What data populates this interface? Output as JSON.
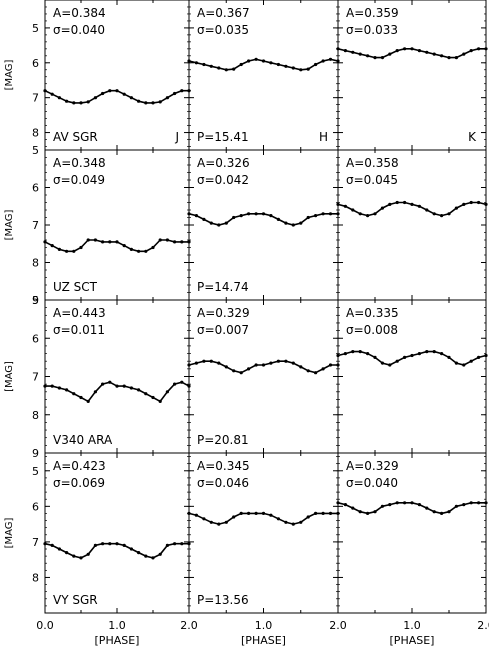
{
  "figure": {
    "x_axis_label": "[PHASE]",
    "y_axis_label": "[MAG]",
    "x_tick_labels": [
      "0.0",
      "1.0",
      "2.0"
    ],
    "band_labels": [
      "J",
      "H",
      "K"
    ]
  },
  "chart_data": [
    {
      "type": "line",
      "row": 0,
      "col": 0,
      "star": "AV SGR",
      "band": "J",
      "A": "A=0.384",
      "sigma": "σ=0.040",
      "ylim": [
        8.5,
        4.2
      ],
      "yticks": [
        5,
        6,
        7,
        8
      ],
      "x": [
        0,
        0.1,
        0.2,
        0.3,
        0.4,
        0.5,
        0.6,
        0.7,
        0.8,
        0.9,
        1.0,
        1.1,
        1.2,
        1.3,
        1.4,
        1.5,
        1.6,
        1.7,
        1.8,
        1.9,
        2.0
      ],
      "y": [
        6.8,
        6.9,
        7.0,
        7.1,
        7.15,
        7.15,
        7.12,
        7.0,
        6.88,
        6.8,
        6.8,
        6.9,
        7.0,
        7.1,
        7.15,
        7.15,
        7.12,
        7.0,
        6.88,
        6.8,
        6.8
      ]
    },
    {
      "type": "line",
      "row": 0,
      "col": 1,
      "band": "H",
      "P": "P=15.41",
      "A": "A=0.367",
      "sigma": "σ=0.035",
      "ylim": [
        8.5,
        4.2
      ],
      "yticks": [
        5,
        6,
        7,
        8
      ],
      "x": [
        0,
        0.1,
        0.2,
        0.3,
        0.4,
        0.5,
        0.6,
        0.7,
        0.8,
        0.9,
        1.0,
        1.1,
        1.2,
        1.3,
        1.4,
        1.5,
        1.6,
        1.7,
        1.8,
        1.9,
        2.0
      ],
      "y": [
        5.95,
        6.0,
        6.05,
        6.1,
        6.15,
        6.2,
        6.18,
        6.05,
        5.95,
        5.9,
        5.95,
        6.0,
        6.05,
        6.1,
        6.15,
        6.2,
        6.18,
        6.05,
        5.95,
        5.9,
        5.95
      ]
    },
    {
      "type": "line",
      "row": 0,
      "col": 2,
      "band": "K",
      "A": "A=0.359",
      "sigma": "σ=0.033",
      "ylim": [
        8.5,
        4.2
      ],
      "yticks": [
        5,
        6,
        7,
        8
      ],
      "x": [
        0,
        0.1,
        0.2,
        0.3,
        0.4,
        0.5,
        0.6,
        0.7,
        0.8,
        0.9,
        1.0,
        1.1,
        1.2,
        1.3,
        1.4,
        1.5,
        1.6,
        1.7,
        1.8,
        1.9,
        2.0
      ],
      "y": [
        5.6,
        5.65,
        5.7,
        5.75,
        5.8,
        5.85,
        5.85,
        5.75,
        5.65,
        5.6,
        5.6,
        5.65,
        5.7,
        5.75,
        5.8,
        5.85,
        5.85,
        5.75,
        5.65,
        5.6,
        5.6
      ]
    },
    {
      "type": "line",
      "row": 1,
      "col": 0,
      "star": "UZ SCT",
      "A": "A=0.348",
      "sigma": "σ=0.049",
      "ylim": [
        9,
        5
      ],
      "yticks": [
        5,
        6,
        7,
        8,
        9
      ],
      "x": [
        0,
        0.1,
        0.2,
        0.3,
        0.4,
        0.5,
        0.6,
        0.7,
        0.8,
        0.9,
        1.0,
        1.1,
        1.2,
        1.3,
        1.4,
        1.5,
        1.6,
        1.7,
        1.8,
        1.9,
        2.0
      ],
      "y": [
        7.45,
        7.55,
        7.65,
        7.7,
        7.7,
        7.6,
        7.4,
        7.4,
        7.45,
        7.45,
        7.45,
        7.55,
        7.65,
        7.7,
        7.7,
        7.6,
        7.4,
        7.4,
        7.45,
        7.45,
        7.45
      ]
    },
    {
      "type": "line",
      "row": 1,
      "col": 1,
      "P": "P=14.74",
      "A": "A=0.326",
      "sigma": "σ=0.042",
      "ylim": [
        9,
        5
      ],
      "yticks": [
        5,
        6,
        7,
        8,
        9
      ],
      "x": [
        0,
        0.1,
        0.2,
        0.3,
        0.4,
        0.5,
        0.6,
        0.7,
        0.8,
        0.9,
        1.0,
        1.1,
        1.2,
        1.3,
        1.4,
        1.5,
        1.6,
        1.7,
        1.8,
        1.9,
        2.0
      ],
      "y": [
        6.7,
        6.75,
        6.85,
        6.95,
        7.0,
        6.95,
        6.8,
        6.75,
        6.7,
        6.7,
        6.7,
        6.75,
        6.85,
        6.95,
        7.0,
        6.95,
        6.8,
        6.75,
        6.7,
        6.7,
        6.7
      ]
    },
    {
      "type": "line",
      "row": 1,
      "col": 2,
      "A": "A=0.358",
      "sigma": "σ=0.045",
      "ylim": [
        9,
        5
      ],
      "yticks": [
        5,
        6,
        7,
        8,
        9
      ],
      "x": [
        0,
        0.1,
        0.2,
        0.3,
        0.4,
        0.5,
        0.6,
        0.7,
        0.8,
        0.9,
        1.0,
        1.1,
        1.2,
        1.3,
        1.4,
        1.5,
        1.6,
        1.7,
        1.8,
        1.9,
        2.0
      ],
      "y": [
        6.45,
        6.5,
        6.6,
        6.7,
        6.75,
        6.7,
        6.55,
        6.45,
        6.4,
        6.4,
        6.45,
        6.5,
        6.6,
        6.7,
        6.75,
        6.7,
        6.55,
        6.45,
        6.4,
        6.4,
        6.45
      ]
    },
    {
      "type": "line",
      "row": 2,
      "col": 0,
      "star": "V340 ARA",
      "A": "A=0.443",
      "sigma": "σ=0.011",
      "ylim": [
        9,
        5
      ],
      "yticks": [
        5,
        6,
        7,
        8,
        9
      ],
      "x": [
        0,
        0.1,
        0.2,
        0.3,
        0.4,
        0.5,
        0.6,
        0.7,
        0.8,
        0.9,
        1.0,
        1.1,
        1.2,
        1.3,
        1.4,
        1.5,
        1.6,
        1.7,
        1.8,
        1.9,
        2.0
      ],
      "y": [
        7.25,
        7.25,
        7.3,
        7.35,
        7.45,
        7.55,
        7.65,
        7.4,
        7.2,
        7.15,
        7.25,
        7.25,
        7.3,
        7.35,
        7.45,
        7.55,
        7.65,
        7.4,
        7.2,
        7.15,
        7.25
      ]
    },
    {
      "type": "line",
      "row": 2,
      "col": 1,
      "P": "P=20.81",
      "A": "A=0.329",
      "sigma": "σ=0.007",
      "ylim": [
        9,
        5
      ],
      "yticks": [
        5,
        6,
        7,
        8,
        9
      ],
      "x": [
        0,
        0.1,
        0.2,
        0.3,
        0.4,
        0.5,
        0.6,
        0.7,
        0.8,
        0.9,
        1.0,
        1.1,
        1.2,
        1.3,
        1.4,
        1.5,
        1.6,
        1.7,
        1.8,
        1.9,
        2.0
      ],
      "y": [
        6.7,
        6.65,
        6.6,
        6.6,
        6.65,
        6.75,
        6.85,
        6.9,
        6.8,
        6.7,
        6.7,
        6.65,
        6.6,
        6.6,
        6.65,
        6.75,
        6.85,
        6.9,
        6.8,
        6.7,
        6.7
      ]
    },
    {
      "type": "line",
      "row": 2,
      "col": 2,
      "A": "A=0.335",
      "sigma": "σ=0.008",
      "ylim": [
        9,
        5
      ],
      "yticks": [
        5,
        6,
        7,
        8,
        9
      ],
      "x": [
        0,
        0.1,
        0.2,
        0.3,
        0.4,
        0.5,
        0.6,
        0.7,
        0.8,
        0.9,
        1.0,
        1.1,
        1.2,
        1.3,
        1.4,
        1.5,
        1.6,
        1.7,
        1.8,
        1.9,
        2.0
      ],
      "y": [
        6.45,
        6.4,
        6.35,
        6.35,
        6.4,
        6.5,
        6.65,
        6.7,
        6.6,
        6.5,
        6.45,
        6.4,
        6.35,
        6.35,
        6.4,
        6.5,
        6.65,
        6.7,
        6.6,
        6.5,
        6.45
      ]
    },
    {
      "type": "line",
      "row": 3,
      "col": 0,
      "star": "VY SGR",
      "A": "A=0.423",
      "sigma": "σ=0.069",
      "ylim": [
        9,
        4.5
      ],
      "yticks": [
        5,
        6,
        7,
        8
      ],
      "x": [
        0,
        0.1,
        0.2,
        0.3,
        0.4,
        0.5,
        0.6,
        0.7,
        0.8,
        0.9,
        1.0,
        1.1,
        1.2,
        1.3,
        1.4,
        1.5,
        1.6,
        1.7,
        1.8,
        1.9,
        2.0
      ],
      "y": [
        7.05,
        7.1,
        7.2,
        7.3,
        7.4,
        7.45,
        7.35,
        7.1,
        7.05,
        7.05,
        7.05,
        7.1,
        7.2,
        7.3,
        7.4,
        7.45,
        7.35,
        7.1,
        7.05,
        7.05,
        7.05
      ]
    },
    {
      "type": "line",
      "row": 3,
      "col": 1,
      "P": "P=13.56",
      "A": "A=0.345",
      "sigma": "σ=0.046",
      "ylim": [
        9,
        4.5
      ],
      "yticks": [
        5,
        6,
        7,
        8
      ],
      "x": [
        0,
        0.1,
        0.2,
        0.3,
        0.4,
        0.5,
        0.6,
        0.7,
        0.8,
        0.9,
        1.0,
        1.1,
        1.2,
        1.3,
        1.4,
        1.5,
        1.6,
        1.7,
        1.8,
        1.9,
        2.0
      ],
      "y": [
        6.2,
        6.25,
        6.35,
        6.45,
        6.5,
        6.45,
        6.3,
        6.2,
        6.2,
        6.2,
        6.2,
        6.25,
        6.35,
        6.45,
        6.5,
        6.45,
        6.3,
        6.2,
        6.2,
        6.2,
        6.2
      ]
    },
    {
      "type": "line",
      "row": 3,
      "col": 2,
      "A": "A=0.329",
      "sigma": "σ=0.040",
      "ylim": [
        9,
        4.5
      ],
      "yticks": [
        5,
        6,
        7,
        8
      ],
      "x": [
        0,
        0.1,
        0.2,
        0.3,
        0.4,
        0.5,
        0.6,
        0.7,
        0.8,
        0.9,
        1.0,
        1.1,
        1.2,
        1.3,
        1.4,
        1.5,
        1.6,
        1.7,
        1.8,
        1.9,
        2.0
      ],
      "y": [
        5.9,
        5.95,
        6.05,
        6.15,
        6.2,
        6.15,
        6.0,
        5.95,
        5.9,
        5.9,
        5.9,
        5.95,
        6.05,
        6.15,
        6.2,
        6.15,
        6.0,
        5.95,
        5.9,
        5.9,
        5.9
      ]
    }
  ]
}
